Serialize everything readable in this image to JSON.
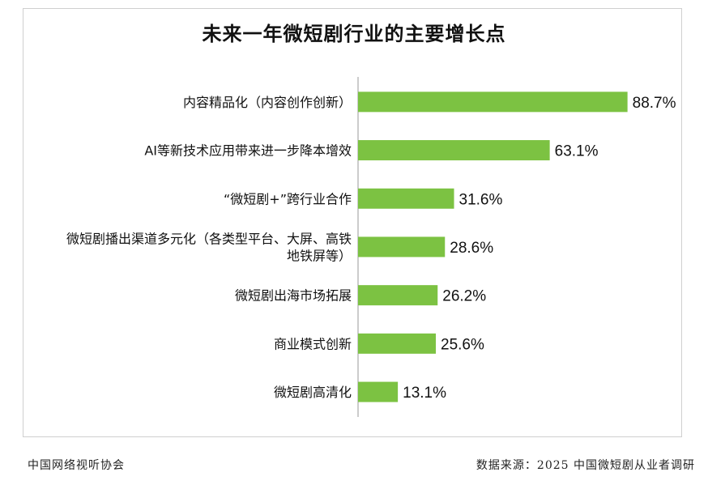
{
  "chart_data": {
    "type": "bar",
    "orientation": "horizontal",
    "title": "未来一年微短剧行业的主要增长点",
    "categories": [
      [
        "内容精品化（内容创作创新）"
      ],
      [
        "AI等新技术应用带来进一步降本增效"
      ],
      [
        "“微短剧+”跨行业合作"
      ],
      [
        "微短剧播出渠道多元化（各类型平台、大屏、高铁",
        "地铁屏等）"
      ],
      [
        "微短剧出海市场拓展"
      ],
      [
        "商业模式创新"
      ],
      [
        "微短剧高清化"
      ]
    ],
    "values": [
      88.7,
      63.1,
      31.6,
      28.6,
      26.2,
      25.6,
      13.1
    ],
    "value_labels": [
      "88.7%",
      "63.1%",
      "31.6%",
      "28.6%",
      "26.2%",
      "25.6%",
      "13.1%"
    ],
    "xlim": [
      0,
      100
    ],
    "unit": "%",
    "bar_color": "#7cc242",
    "grid": false,
    "legend": "none"
  },
  "footer": {
    "organization": "中国网络视听协会",
    "source": "数据来源：2025 中国微短剧从业者调研"
  }
}
